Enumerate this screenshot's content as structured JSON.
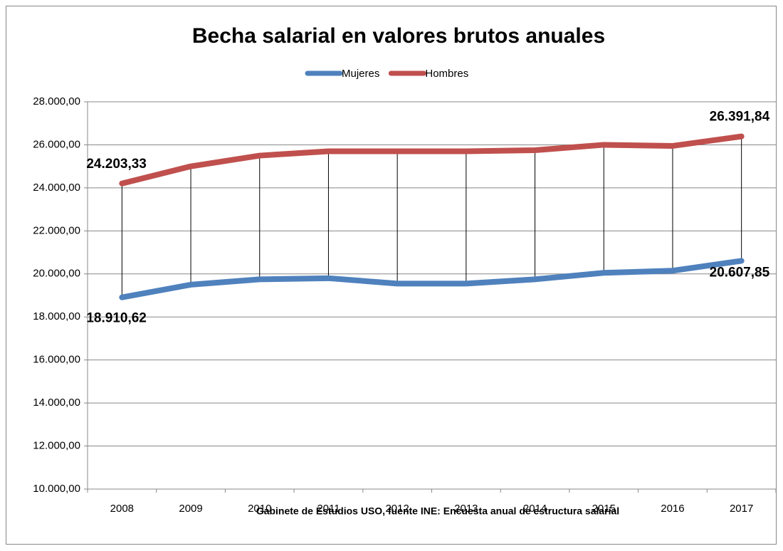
{
  "chart_data": {
    "type": "line",
    "title": "Becha salarial  en valores brutos anuales",
    "x_label": "Gabinete de Estudios USO, fuente INE: Encuesta anual de estructura salarial",
    "categories": [
      "2008",
      "2009",
      "2010",
      "2011",
      "2012",
      "2013",
      "2014",
      "2015",
      "2016",
      "2017"
    ],
    "series": [
      {
        "name": "Mujeres",
        "color": "#4f81bd",
        "values": [
          18910.62,
          19500,
          19750,
          19800,
          19550,
          19550,
          19750,
          20050,
          20150,
          20607.85
        ],
        "value_labels": [
          "18.910,62",
          null,
          null,
          null,
          null,
          null,
          null,
          null,
          null,
          "20.607,85"
        ]
      },
      {
        "name": "Hombres",
        "color": "#c0504d",
        "values": [
          24203.33,
          25000,
          25500,
          25700,
          25700,
          25700,
          25750,
          26000,
          25950,
          26391.84
        ],
        "value_labels": [
          "24.203,33",
          null,
          null,
          null,
          null,
          null,
          null,
          null,
          null,
          "26.391,84"
        ]
      }
    ],
    "ylim": [
      10000,
      28000
    ],
    "yticks": [
      {
        "value": 10000,
        "label": "10.000,00"
      },
      {
        "value": 12000,
        "label": "12.000,00"
      },
      {
        "value": 14000,
        "label": "14.000,00"
      },
      {
        "value": 16000,
        "label": "16.000,00"
      },
      {
        "value": 18000,
        "label": "18.000,00"
      },
      {
        "value": 20000,
        "label": "20.000,00"
      },
      {
        "value": 22000,
        "label": "22.000,00"
      },
      {
        "value": 24000,
        "label": "24.000,00"
      },
      {
        "value": 26000,
        "label": "26.000,00"
      },
      {
        "value": 28000,
        "label": "28.000,00"
      }
    ],
    "grid": true,
    "legend": "top",
    "high_low_lines": true
  }
}
